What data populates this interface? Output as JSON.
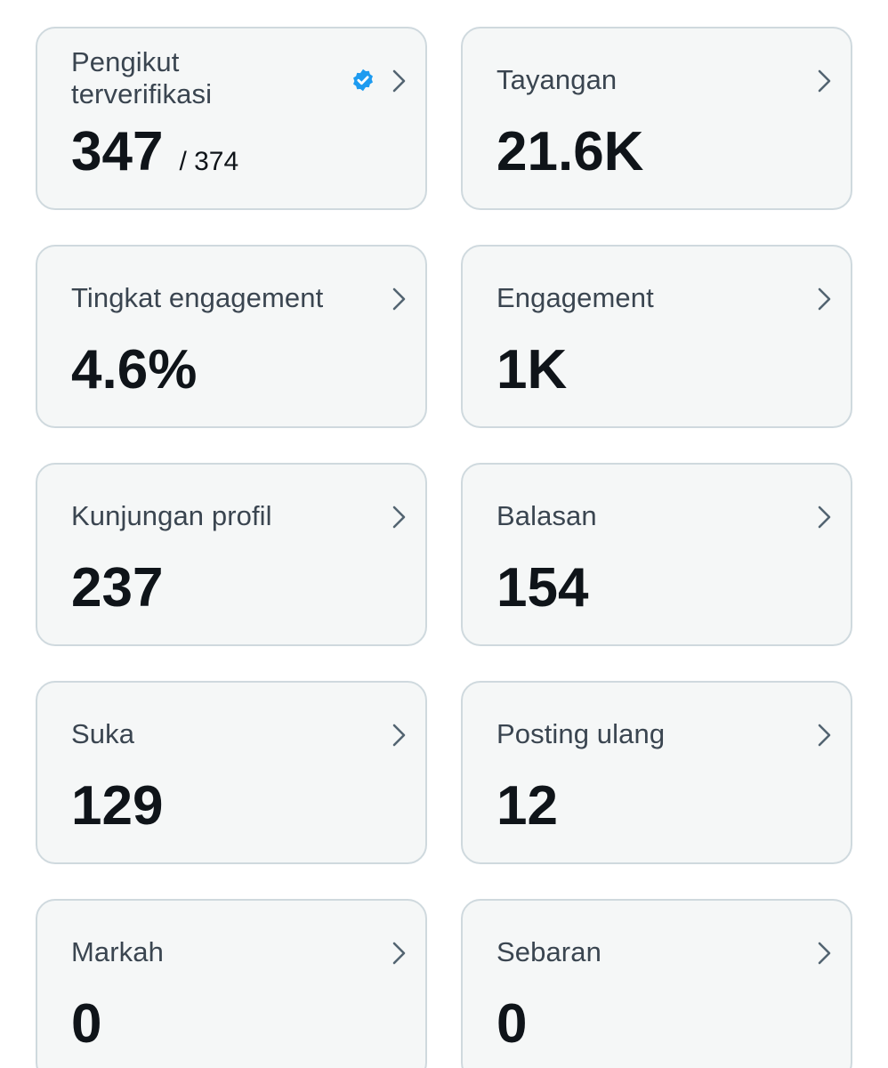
{
  "cards": [
    {
      "label_line1": "Pengikut",
      "label_line2": "terverifikasi",
      "value": "347",
      "total": "/ 374",
      "verified_icon": "verified-badge-icon"
    },
    {
      "label": "Tayangan",
      "value": "21.6K"
    },
    {
      "label": "Tingkat engagement",
      "value": "4.6%"
    },
    {
      "label": "Engagement",
      "value": "1K"
    },
    {
      "label": "Kunjungan profil",
      "value": "237"
    },
    {
      "label": "Balasan",
      "value": "154"
    },
    {
      "label": "Suka",
      "value": "129"
    },
    {
      "label": "Posting ulang",
      "value": "12"
    },
    {
      "label": "Markah",
      "value": "0"
    },
    {
      "label": "Sebaran",
      "value": "0"
    }
  ],
  "colors": {
    "card_background": "#f5f7f7",
    "card_border": "#cfd9de",
    "label_text": "#3a4550",
    "value_text": "#0f1419",
    "chevron": "#536471",
    "verified_badge": "#1d9bf0"
  }
}
